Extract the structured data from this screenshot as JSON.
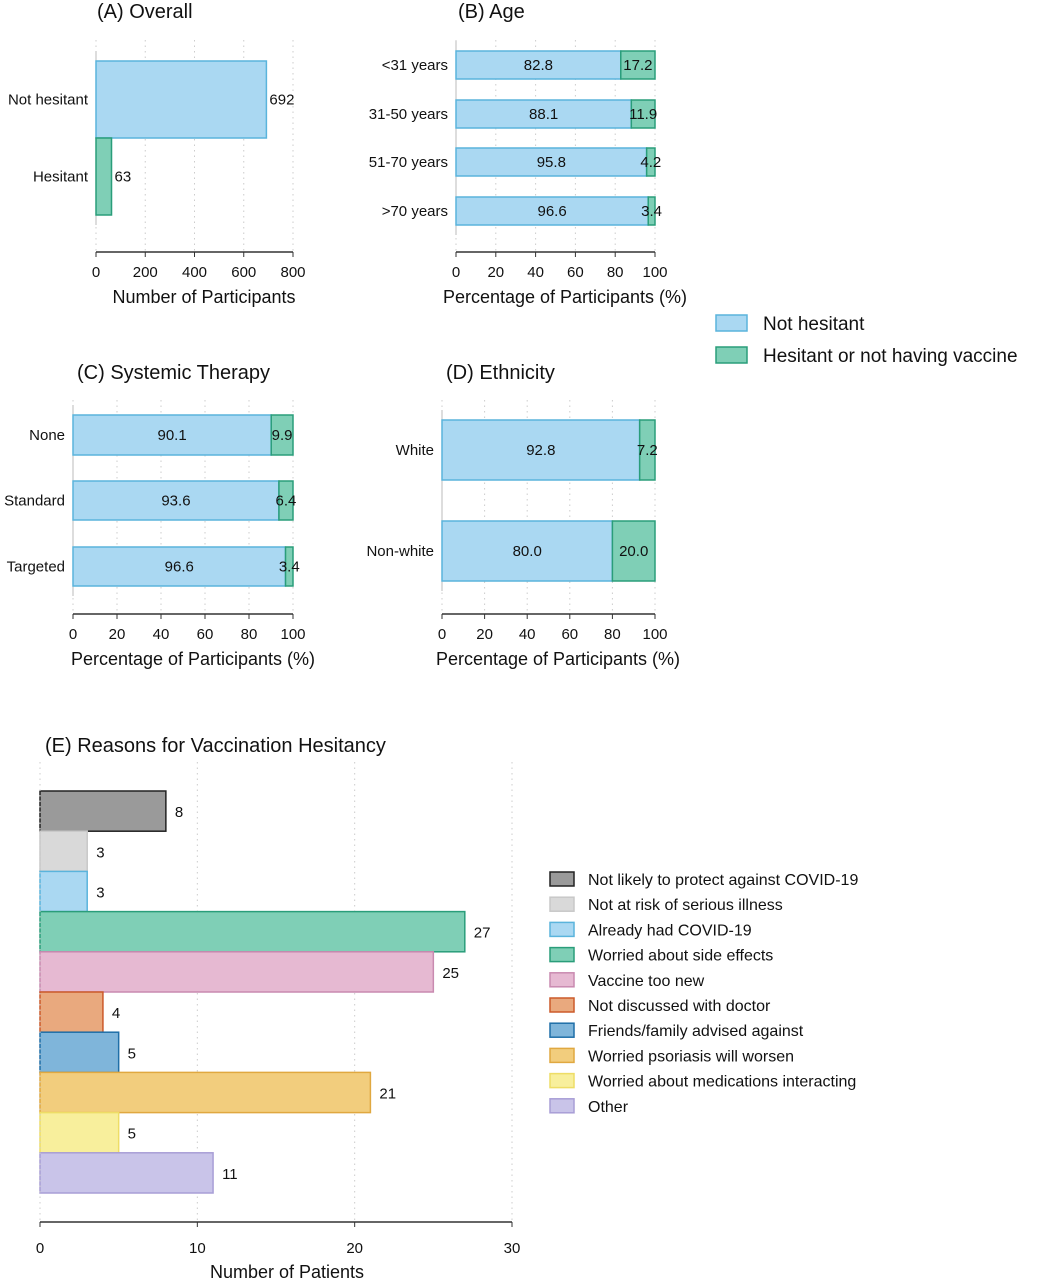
{
  "colors": {
    "not_hesitant": {
      "fill": "#aad8f2",
      "stroke": "#5ab4dc"
    },
    "hesitant": {
      "fill": "#7fcfb6",
      "stroke": "#2a9d7a"
    }
  },
  "legend_main": [
    "Not hesitant",
    "Hesitant or not having vaccine"
  ],
  "chart_data": [
    {
      "id": "A",
      "type": "bar",
      "orientation": "horizontal",
      "title": "(A) Overall",
      "xlabel": "Number of Participants",
      "xlim": [
        0,
        800
      ],
      "xticks": [
        "0",
        "200",
        "400",
        "600",
        "800"
      ],
      "grid": true,
      "categories": [
        "Not hesitant",
        "Hesitant"
      ],
      "values": [
        692,
        63
      ],
      "labels": [
        "692",
        "63"
      ]
    },
    {
      "id": "B",
      "type": "bar",
      "orientation": "horizontal",
      "stacked": true,
      "title": "(B) Age",
      "xlabel": "Percentage of Participants (%)",
      "xlim": [
        0,
        100
      ],
      "xticks": [
        "0",
        "20",
        "40",
        "60",
        "80",
        "100"
      ],
      "grid": true,
      "categories": [
        "<31 years",
        "31-50 years",
        "51-70 years",
        ">70 years"
      ],
      "series": [
        {
          "name": "Not hesitant",
          "values": [
            82.8,
            88.1,
            95.8,
            96.6
          ],
          "labels": [
            "82.8",
            "88.1",
            "95.8",
            "96.6"
          ]
        },
        {
          "name": "Hesitant or not having vaccine",
          "values": [
            17.2,
            11.9,
            4.2,
            3.4
          ],
          "labels": [
            "17.2",
            "11.9",
            "4.2",
            "3.4"
          ]
        }
      ]
    },
    {
      "id": "C",
      "type": "bar",
      "orientation": "horizontal",
      "stacked": true,
      "title": "(C) Systemic Therapy",
      "xlabel": "Percentage of Participants (%)",
      "xlim": [
        0,
        100
      ],
      "xticks": [
        "0",
        "20",
        "40",
        "60",
        "80",
        "100"
      ],
      "grid": true,
      "categories": [
        "None",
        "Standard",
        "Targeted"
      ],
      "series": [
        {
          "name": "Not hesitant",
          "values": [
            90.1,
            93.6,
            96.6
          ],
          "labels": [
            "90.1",
            "93.6",
            "96.6"
          ]
        },
        {
          "name": "Hesitant or not having vaccine",
          "values": [
            9.9,
            6.4,
            3.4
          ],
          "labels": [
            "9.9",
            "6.4",
            "3.4"
          ]
        }
      ]
    },
    {
      "id": "D",
      "type": "bar",
      "orientation": "horizontal",
      "stacked": true,
      "title": "(D) Ethnicity",
      "xlabel": "Percentage of Participants (%)",
      "xlim": [
        0,
        100
      ],
      "xticks": [
        "0",
        "20",
        "40",
        "60",
        "80",
        "100"
      ],
      "grid": true,
      "categories": [
        "White",
        "Non-white"
      ],
      "series": [
        {
          "name": "Not hesitant",
          "values": [
            92.8,
            80.0
          ],
          "labels": [
            "92.8",
            "80.0"
          ]
        },
        {
          "name": "Hesitant or not having vaccine",
          "values": [
            7.2,
            20.0
          ],
          "labels": [
            "7.2",
            "20.0"
          ]
        }
      ]
    },
    {
      "id": "E",
      "type": "bar",
      "orientation": "horizontal",
      "title": "(E) Reasons for Vaccination Hesitancy",
      "xlabel": "Number of Patients",
      "xlim": [
        0,
        30
      ],
      "xticks": [
        "0",
        "10",
        "20",
        "30"
      ],
      "grid": true,
      "legend_position": "right",
      "categories": [
        "Not likely to protect against COVID-19",
        "Not at risk of serious illness",
        "Already had COVID-19",
        "Worried about side effects",
        "Vaccine too new",
        "Not discussed with doctor",
        "Friends/family advised against",
        "Worried psoriasis will worsen",
        "Worried about medications interacting",
        "Other"
      ],
      "values": [
        8,
        3,
        3,
        27,
        25,
        4,
        5,
        21,
        5,
        11
      ],
      "labels": [
        "8",
        "3",
        "3",
        "27",
        "25",
        "4",
        "5",
        "21",
        "5",
        "11"
      ],
      "colors": [
        {
          "fill": "#9a9a9a",
          "stroke": "#222222"
        },
        {
          "fill": "#d9d9d9",
          "stroke": "#c8c8c8"
        },
        {
          "fill": "#aad8f2",
          "stroke": "#5ab4dc"
        },
        {
          "fill": "#7fcfb6",
          "stroke": "#2a9d7a"
        },
        {
          "fill": "#e6b9d2",
          "stroke": "#c98ab0"
        },
        {
          "fill": "#e9a97e",
          "stroke": "#cc5a2a"
        },
        {
          "fill": "#7fb5da",
          "stroke": "#1f6fa8"
        },
        {
          "fill": "#f2cd7d",
          "stroke": "#e0a840"
        },
        {
          "fill": "#f8ef9c",
          "stroke": "#eedd66"
        },
        {
          "fill": "#c9c4e9",
          "stroke": "#a89ed6"
        }
      ]
    }
  ]
}
